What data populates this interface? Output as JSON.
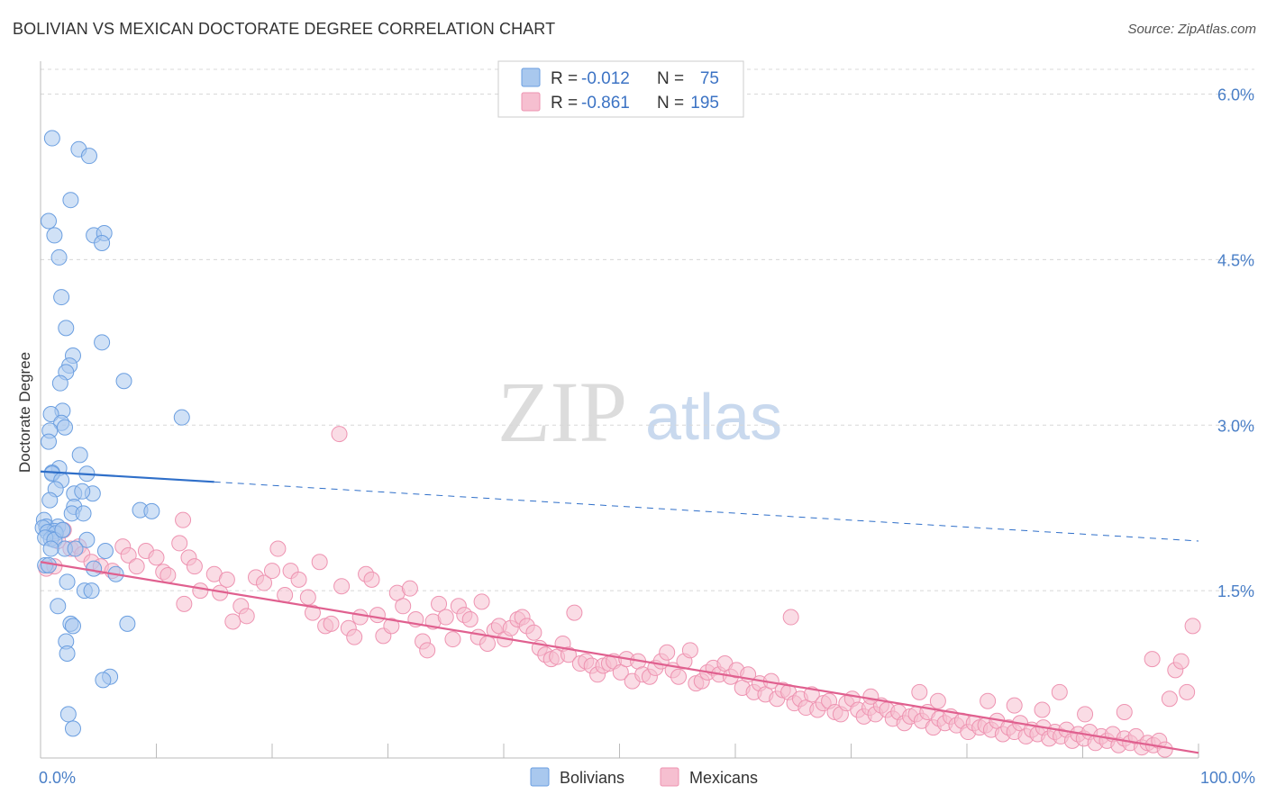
{
  "header": {
    "title": "BOLIVIAN VS MEXICAN DOCTORATE DEGREE CORRELATION CHART",
    "source": "Source: ZipAtlas.com"
  },
  "watermark": {
    "zip": "ZIP",
    "atlas": "atlas"
  },
  "legend_top": {
    "rows": [
      {
        "r_label": "R =",
        "r_value": "-0.012",
        "n_label": "N =",
        "n_value": "75"
      },
      {
        "r_label": "R =",
        "r_value": "-0.861",
        "n_label": "N =",
        "n_value": "195"
      }
    ]
  },
  "legend_bottom": {
    "items": [
      {
        "label": "Bolivians"
      },
      {
        "label": "Mexicans"
      }
    ]
  },
  "colors": {
    "bolivian_fill": "#a9c8ee",
    "bolivian_stroke": "#6a9ee0",
    "bolivian_line": "#2f6fc9",
    "mexican_fill": "#f6bfd0",
    "mexican_stroke": "#ee93b1",
    "mexican_line": "#e0608f",
    "grid": "#d8d8d8",
    "axis_text": "#4a7fc7"
  },
  "chart_data": {
    "type": "scatter",
    "title": "BOLIVIAN VS MEXICAN DOCTORATE DEGREE CORRELATION CHART",
    "xlabel": "",
    "ylabel": "Doctorate Degree",
    "xlim": [
      0,
      100
    ],
    "ylim": [
      0,
      6.2
    ],
    "x_tick_labels": [
      "0.0%",
      "100.0%"
    ],
    "y_ticks": [
      1.5,
      3.0,
      4.5,
      6.0
    ],
    "y_tick_labels": [
      "1.5%",
      "3.0%",
      "4.5%",
      "6.0%"
    ],
    "series": [
      {
        "name": "Bolivians",
        "R": -0.012,
        "N": 75,
        "trend": {
          "x0": 0,
          "y0": 2.58,
          "x1_solid": 15,
          "x1": 100,
          "y1": 1.95
        },
        "points": [
          [
            1.0,
            5.6
          ],
          [
            3.3,
            5.5
          ],
          [
            4.2,
            5.44
          ],
          [
            2.6,
            5.04
          ],
          [
            0.7,
            4.85
          ],
          [
            1.2,
            4.72
          ],
          [
            4.6,
            4.72
          ],
          [
            5.5,
            4.74
          ],
          [
            5.3,
            4.65
          ],
          [
            1.6,
            4.52
          ],
          [
            1.8,
            4.16
          ],
          [
            2.2,
            3.88
          ],
          [
            5.3,
            3.75
          ],
          [
            2.8,
            3.63
          ],
          [
            2.5,
            3.54
          ],
          [
            2.2,
            3.48
          ],
          [
            1.7,
            3.38
          ],
          [
            7.2,
            3.4
          ],
          [
            1.9,
            3.13
          ],
          [
            0.9,
            3.1
          ],
          [
            12.2,
            3.07
          ],
          [
            1.8,
            3.02
          ],
          [
            2.1,
            2.98
          ],
          [
            0.8,
            2.95
          ],
          [
            0.7,
            2.85
          ],
          [
            3.4,
            2.73
          ],
          [
            1.6,
            2.61
          ],
          [
            1.0,
            2.57
          ],
          [
            4.0,
            2.56
          ],
          [
            1.0,
            2.56
          ],
          [
            1.8,
            2.5
          ],
          [
            1.3,
            2.42
          ],
          [
            2.9,
            2.38
          ],
          [
            4.5,
            2.38
          ],
          [
            3.6,
            2.4
          ],
          [
            0.8,
            2.32
          ],
          [
            2.9,
            2.26
          ],
          [
            8.6,
            2.23
          ],
          [
            9.6,
            2.22
          ],
          [
            2.7,
            2.2
          ],
          [
            3.7,
            2.2
          ],
          [
            0.3,
            2.14
          ],
          [
            0.5,
            2.08
          ],
          [
            0.2,
            2.07
          ],
          [
            1.5,
            2.08
          ],
          [
            1.2,
            2.04
          ],
          [
            0.6,
            2.03
          ],
          [
            1.9,
            2.05
          ],
          [
            1.3,
            2.02
          ],
          [
            0.9,
            1.97
          ],
          [
            0.4,
            1.98
          ],
          [
            1.2,
            1.96
          ],
          [
            4.0,
            1.96
          ],
          [
            2.1,
            1.88
          ],
          [
            0.9,
            1.88
          ],
          [
            3.0,
            1.88
          ],
          [
            5.6,
            1.86
          ],
          [
            0.4,
            1.73
          ],
          [
            4.6,
            1.7
          ],
          [
            6.5,
            1.65
          ],
          [
            2.3,
            1.58
          ],
          [
            3.8,
            1.5
          ],
          [
            4.4,
            1.5
          ],
          [
            1.5,
            1.36
          ],
          [
            2.6,
            1.2
          ],
          [
            2.8,
            1.18
          ],
          [
            7.5,
            1.2
          ],
          [
            2.2,
            1.04
          ],
          [
            2.3,
            0.93
          ],
          [
            6.0,
            0.72
          ],
          [
            5.4,
            0.69
          ],
          [
            2.4,
            0.38
          ],
          [
            2.8,
            0.25
          ],
          [
            0.7,
            1.73
          ],
          [
            1.9,
            2.05
          ]
        ]
      },
      {
        "name": "Mexicans",
        "R": -0.861,
        "N": 195,
        "trend": {
          "x0": 0,
          "y0": 1.76,
          "x1": 100,
          "y1": 0.03
        },
        "points": [
          [
            0.5,
            1.7
          ],
          [
            1.2,
            1.72
          ],
          [
            2.0,
            2.05
          ],
          [
            1.5,
            1.95
          ],
          [
            2.6,
            1.88
          ],
          [
            3.3,
            1.9
          ],
          [
            3.6,
            1.83
          ],
          [
            4.4,
            1.76
          ],
          [
            5.2,
            1.72
          ],
          [
            6.2,
            1.68
          ],
          [
            7.1,
            1.9
          ],
          [
            7.6,
            1.82
          ],
          [
            8.3,
            1.72
          ],
          [
            9.1,
            1.86
          ],
          [
            10.0,
            1.8
          ],
          [
            10.6,
            1.67
          ],
          [
            11.0,
            1.64
          ],
          [
            12.0,
            1.93
          ],
          [
            12.4,
            1.38
          ],
          [
            12.8,
            1.8
          ],
          [
            13.3,
            1.72
          ],
          [
            13.8,
            1.5
          ],
          [
            15.0,
            1.65
          ],
          [
            15.5,
            1.48
          ],
          [
            16.1,
            1.6
          ],
          [
            16.6,
            1.22
          ],
          [
            17.3,
            1.36
          ],
          [
            17.8,
            1.27
          ],
          [
            18.6,
            1.62
          ],
          [
            19.3,
            1.57
          ],
          [
            20.0,
            1.68
          ],
          [
            20.5,
            1.88
          ],
          [
            21.1,
            1.46
          ],
          [
            21.6,
            1.68
          ],
          [
            22.3,
            1.6
          ],
          [
            23.1,
            1.44
          ],
          [
            23.5,
            1.3
          ],
          [
            24.1,
            1.76
          ],
          [
            24.6,
            1.18
          ],
          [
            25.1,
            1.2
          ],
          [
            26.0,
            1.54
          ],
          [
            26.6,
            1.16
          ],
          [
            27.1,
            1.08
          ],
          [
            27.6,
            1.26
          ],
          [
            28.1,
            1.65
          ],
          [
            28.6,
            1.6
          ],
          [
            29.1,
            1.28
          ],
          [
            29.6,
            1.09
          ],
          [
            30.3,
            1.18
          ],
          [
            30.8,
            1.48
          ],
          [
            31.3,
            1.36
          ],
          [
            31.9,
            1.52
          ],
          [
            32.4,
            1.24
          ],
          [
            33.0,
            1.04
          ],
          [
            33.4,
            0.96
          ],
          [
            33.9,
            1.22
          ],
          [
            34.4,
            1.38
          ],
          [
            35.0,
            1.26
          ],
          [
            35.6,
            1.06
          ],
          [
            36.1,
            1.36
          ],
          [
            36.6,
            1.28
          ],
          [
            37.1,
            1.24
          ],
          [
            37.8,
            1.08
          ],
          [
            38.1,
            1.4
          ],
          [
            38.6,
            1.02
          ],
          [
            39.2,
            1.14
          ],
          [
            39.6,
            1.18
          ],
          [
            40.1,
            1.06
          ],
          [
            40.6,
            1.16
          ],
          [
            41.2,
            1.24
          ],
          [
            41.6,
            1.26
          ],
          [
            42.0,
            1.18
          ],
          [
            42.6,
            1.12
          ],
          [
            43.1,
            0.98
          ],
          [
            43.6,
            0.92
          ],
          [
            44.1,
            0.88
          ],
          [
            44.6,
            0.9
          ],
          [
            45.1,
            1.02
          ],
          [
            45.6,
            0.92
          ],
          [
            46.1,
            1.3
          ],
          [
            46.6,
            0.84
          ],
          [
            47.1,
            0.86
          ],
          [
            47.6,
            0.82
          ],
          [
            48.1,
            0.74
          ],
          [
            48.6,
            0.82
          ],
          [
            49.1,
            0.84
          ],
          [
            49.5,
            0.86
          ],
          [
            50.1,
            0.76
          ],
          [
            50.6,
            0.88
          ],
          [
            51.1,
            0.68
          ],
          [
            51.6,
            0.86
          ],
          [
            52.0,
            0.74
          ],
          [
            52.6,
            0.72
          ],
          [
            53.1,
            0.8
          ],
          [
            53.6,
            0.86
          ],
          [
            54.1,
            0.94
          ],
          [
            54.6,
            0.78
          ],
          [
            55.1,
            0.72
          ],
          [
            55.6,
            0.86
          ],
          [
            56.1,
            0.96
          ],
          [
            56.6,
            0.66
          ],
          [
            57.1,
            0.68
          ],
          [
            57.6,
            0.76
          ],
          [
            58.1,
            0.8
          ],
          [
            58.6,
            0.74
          ],
          [
            59.1,
            0.84
          ],
          [
            59.6,
            0.72
          ],
          [
            60.1,
            0.78
          ],
          [
            60.6,
            0.62
          ],
          [
            61.1,
            0.74
          ],
          [
            61.6,
            0.58
          ],
          [
            62.1,
            0.66
          ],
          [
            62.6,
            0.56
          ],
          [
            63.1,
            0.68
          ],
          [
            63.6,
            0.52
          ],
          [
            64.1,
            0.6
          ],
          [
            64.6,
            0.58
          ],
          [
            65.1,
            0.48
          ],
          [
            65.6,
            0.52
          ],
          [
            66.1,
            0.44
          ],
          [
            66.6,
            0.56
          ],
          [
            67.1,
            0.42
          ],
          [
            67.6,
            0.48
          ],
          [
            68.1,
            0.5
          ],
          [
            68.6,
            0.4
          ],
          [
            69.1,
            0.38
          ],
          [
            69.6,
            0.48
          ],
          [
            70.1,
            0.52
          ],
          [
            70.6,
            0.42
          ],
          [
            71.1,
            0.36
          ],
          [
            71.6,
            0.44
          ],
          [
            72.1,
            0.38
          ],
          [
            72.6,
            0.46
          ],
          [
            73.1,
            0.42
          ],
          [
            73.6,
            0.34
          ],
          [
            74.1,
            0.4
          ],
          [
            74.6,
            0.3
          ],
          [
            75.1,
            0.36
          ],
          [
            75.6,
            0.38
          ],
          [
            76.1,
            0.32
          ],
          [
            76.6,
            0.4
          ],
          [
            77.1,
            0.26
          ],
          [
            77.6,
            0.34
          ],
          [
            78.1,
            0.3
          ],
          [
            78.6,
            0.36
          ],
          [
            79.1,
            0.28
          ],
          [
            79.6,
            0.32
          ],
          [
            80.1,
            0.22
          ],
          [
            80.6,
            0.3
          ],
          [
            81.1,
            0.26
          ],
          [
            81.6,
            0.28
          ],
          [
            82.1,
            0.24
          ],
          [
            82.6,
            0.32
          ],
          [
            83.1,
            0.2
          ],
          [
            83.6,
            0.26
          ],
          [
            84.1,
            0.22
          ],
          [
            84.6,
            0.3
          ],
          [
            85.1,
            0.18
          ],
          [
            85.6,
            0.24
          ],
          [
            86.1,
            0.2
          ],
          [
            86.6,
            0.26
          ],
          [
            87.1,
            0.16
          ],
          [
            87.6,
            0.22
          ],
          [
            88.1,
            0.18
          ],
          [
            88.6,
            0.24
          ],
          [
            89.1,
            0.14
          ],
          [
            89.6,
            0.2
          ],
          [
            90.1,
            0.16
          ],
          [
            90.6,
            0.22
          ],
          [
            91.1,
            0.12
          ],
          [
            91.6,
            0.18
          ],
          [
            92.1,
            0.14
          ],
          [
            92.6,
            0.2
          ],
          [
            93.1,
            0.1
          ],
          [
            93.6,
            0.16
          ],
          [
            94.1,
            0.12
          ],
          [
            94.6,
            0.18
          ],
          [
            95.1,
            0.08
          ],
          [
            95.6,
            0.12
          ],
          [
            96.1,
            0.1
          ],
          [
            96.6,
            0.14
          ],
          [
            97.1,
            0.06
          ],
          [
            98.0,
            0.78
          ],
          [
            98.5,
            0.86
          ],
          [
            99.0,
            0.58
          ],
          [
            99.5,
            1.18
          ],
          [
            96.0,
            0.88
          ],
          [
            64.8,
            1.26
          ],
          [
            71.7,
            0.54
          ],
          [
            75.9,
            0.58
          ],
          [
            77.5,
            0.5
          ],
          [
            81.8,
            0.5
          ],
          [
            84.1,
            0.46
          ],
          [
            86.5,
            0.42
          ],
          [
            88.0,
            0.58
          ],
          [
            90.2,
            0.38
          ],
          [
            93.6,
            0.4
          ],
          [
            97.5,
            0.52
          ],
          [
            25.8,
            2.92
          ],
          [
            12.3,
            2.14
          ]
        ]
      }
    ]
  }
}
